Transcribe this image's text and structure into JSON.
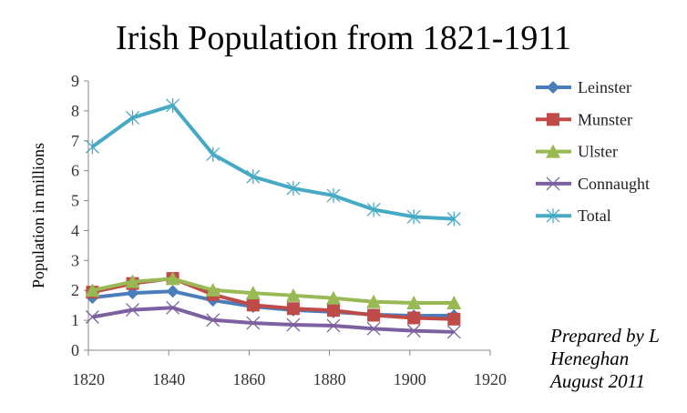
{
  "chart_data": {
    "type": "line",
    "title": "Irish Population from 1821-1911",
    "xlabel": "",
    "ylabel": "Population in millions",
    "xlim": [
      1820,
      1920
    ],
    "ylim": [
      0,
      9
    ],
    "xticks": [
      1820,
      1840,
      1860,
      1880,
      1900,
      1920
    ],
    "yticks": [
      0,
      1,
      2,
      3,
      4,
      5,
      6,
      7,
      8,
      9
    ],
    "grid": false,
    "legend_position": "right",
    "x": [
      1821,
      1831,
      1841,
      1851,
      1861,
      1871,
      1881,
      1891,
      1901,
      1911
    ],
    "series": [
      {
        "name": "Leinster",
        "color": "#4A7EBB",
        "marker": "diamond",
        "values": [
          1.76,
          1.91,
          1.97,
          1.67,
          1.46,
          1.34,
          1.28,
          1.19,
          1.15,
          1.16
        ]
      },
      {
        "name": "Munster",
        "color": "#BE4B48",
        "marker": "square",
        "values": [
          1.94,
          2.23,
          2.4,
          1.86,
          1.51,
          1.39,
          1.33,
          1.17,
          1.08,
          1.04
        ]
      },
      {
        "name": "Ulster",
        "color": "#98B954",
        "marker": "triangle",
        "values": [
          2.0,
          2.29,
          2.39,
          2.01,
          1.91,
          1.83,
          1.74,
          1.62,
          1.58,
          1.58
        ]
      },
      {
        "name": "Connaught",
        "color": "#7D60A0",
        "marker": "x",
        "values": [
          1.11,
          1.35,
          1.42,
          1.01,
          0.91,
          0.85,
          0.82,
          0.72,
          0.65,
          0.61
        ]
      },
      {
        "name": "Total",
        "color": "#46AAC5",
        "marker": "star",
        "values": [
          6.8,
          7.77,
          8.18,
          6.55,
          5.8,
          5.41,
          5.17,
          4.7,
          4.46,
          4.39
        ]
      }
    ],
    "annotation": [
      "Prepared by L",
      "Heneghan",
      "August 2011"
    ]
  }
}
